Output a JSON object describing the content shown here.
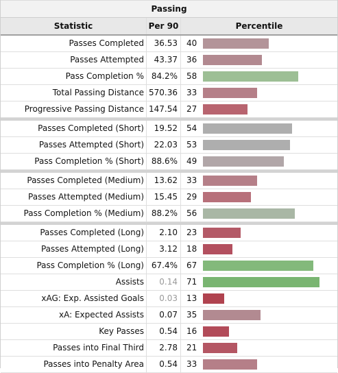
{
  "title": "Passing",
  "headers": {
    "statistic": "Statistic",
    "per90": "Per 90",
    "percentile": "Percentile"
  },
  "colors": {
    "high": "#8dbb84",
    "mid": "#a9a9a9",
    "low": "#b77b84",
    "verylow": "#b3505f"
  },
  "rows": [
    {
      "stat": "Passes Completed",
      "per90": "36.53",
      "percentile": "40",
      "color": "#b39499"
    },
    {
      "stat": "Passes Attempted",
      "per90": "43.37",
      "percentile": "36",
      "color": "#b28990"
    },
    {
      "stat": "Pass Completion %",
      "per90": "84.2%",
      "percentile": "58",
      "color": "#9dbf95"
    },
    {
      "stat": "Total Passing Distance",
      "per90": "570.36",
      "percentile": "33",
      "color": "#b57f88"
    },
    {
      "stat": "Progressive Passing Distance",
      "per90": "147.54",
      "percentile": "27",
      "color": "#b8646f"
    },
    {
      "stat": "Passes Completed (Short)",
      "per90": "19.52",
      "percentile": "54",
      "color": "#aeaeae",
      "group_start": true
    },
    {
      "stat": "Passes Attempted (Short)",
      "per90": "22.03",
      "percentile": "53",
      "color": "#aeaeae"
    },
    {
      "stat": "Pass Completion % (Short)",
      "per90": "88.6%",
      "percentile": "49",
      "color": "#b1a6a8"
    },
    {
      "stat": "Passes Completed (Medium)",
      "per90": "13.62",
      "percentile": "33",
      "color": "#b57f88",
      "group_start": true
    },
    {
      "stat": "Passes Attempted (Medium)",
      "per90": "15.45",
      "percentile": "29",
      "color": "#b7707a"
    },
    {
      "stat": "Pass Completion % (Medium)",
      "per90": "88.2%",
      "percentile": "56",
      "color": "#a9b7a5"
    },
    {
      "stat": "Passes Completed (Long)",
      "per90": "2.10",
      "percentile": "23",
      "color": "#b45a67",
      "group_start": true
    },
    {
      "stat": "Passes Attempted (Long)",
      "per90": "3.12",
      "percentile": "18",
      "color": "#b3505f"
    },
    {
      "stat": "Pass Completion % (Long)",
      "per90": "67.4%",
      "percentile": "67",
      "color": "#83b97b"
    },
    {
      "stat": "Assists",
      "per90": "0.14",
      "percentile": "71",
      "color": "#79b571",
      "muted": true
    },
    {
      "stat": "xAG: Exp. Assisted Goals",
      "per90": "0.03",
      "percentile": "13",
      "color": "#b0434f",
      "muted": true
    },
    {
      "stat": "xA: Expected Assists",
      "per90": "0.07",
      "percentile": "35",
      "color": "#b28a91"
    },
    {
      "stat": "Key Passes",
      "per90": "0.54",
      "percentile": "16",
      "color": "#b24b59"
    },
    {
      "stat": "Passes into Final Third",
      "per90": "2.78",
      "percentile": "21",
      "color": "#b45663"
    },
    {
      "stat": "Passes into Penalty Area",
      "per90": "0.54",
      "percentile": "33",
      "color": "#b57f88"
    }
  ]
}
